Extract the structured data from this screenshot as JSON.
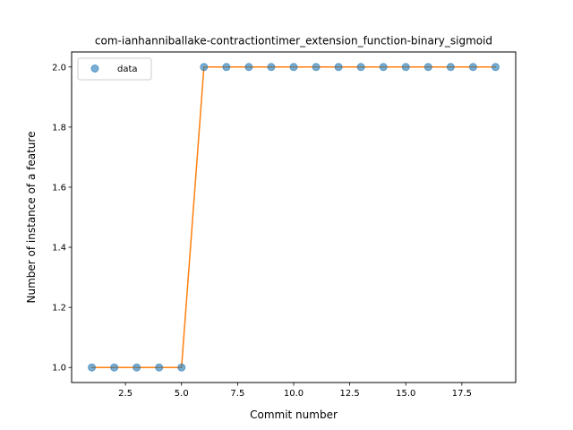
{
  "chart_data": {
    "type": "scatter",
    "title": "com-ianhanniballake-contractiontimer_extension_function-binary_sigmoid",
    "xlabel": "Commit number",
    "ylabel": "Number of instance of a feature",
    "xlim": [
      0.1,
      19.9
    ],
    "ylim": [
      0.95,
      2.05
    ],
    "xticks": [
      2.5,
      5.0,
      7.5,
      10.0,
      12.5,
      15.0,
      17.5
    ],
    "xtick_labels": [
      "2.5",
      "5.0",
      "7.5",
      "10.0",
      "12.5",
      "15.0",
      "17.5"
    ],
    "yticks": [
      1.0,
      1.2,
      1.4,
      1.6,
      1.8,
      2.0
    ],
    "ytick_labels": [
      "1.0",
      "1.2",
      "1.4",
      "1.6",
      "1.8",
      "2.0"
    ],
    "legend_position": "upper-left",
    "grid": false,
    "series": [
      {
        "name": "data",
        "kind": "scatter",
        "color": "#1f77b4",
        "x": [
          1,
          2,
          3,
          4,
          5,
          6,
          7,
          8,
          9,
          10,
          11,
          12,
          13,
          14,
          15,
          16,
          17,
          18,
          19
        ],
        "y": [
          1,
          1,
          1,
          1,
          1,
          2,
          2,
          2,
          2,
          2,
          2,
          2,
          2,
          2,
          2,
          2,
          2,
          2,
          2
        ]
      },
      {
        "kind": "line",
        "color": "#ff7f0e",
        "x": [
          1,
          2,
          3,
          4,
          5,
          6,
          7,
          8,
          9,
          10,
          11,
          12,
          13,
          14,
          15,
          16,
          17,
          18,
          19
        ],
        "y": [
          1,
          1,
          1,
          1,
          1,
          2,
          2,
          2,
          2,
          2,
          2,
          2,
          2,
          2,
          2,
          2,
          2,
          2,
          2
        ]
      }
    ]
  }
}
